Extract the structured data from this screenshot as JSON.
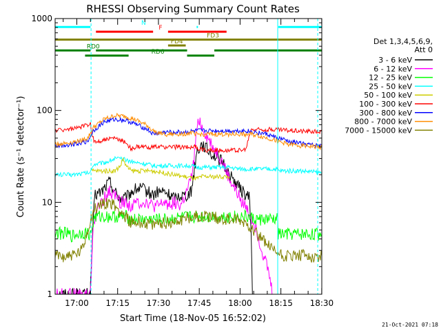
{
  "chart_data": {
    "type": "line",
    "title": "RHESSI Observing Summary Count Rates",
    "xlabel": "Start Time (18-Nov-05 16:52:02)",
    "ylabel": "Count Rate (s⁻¹ detector⁻¹)",
    "yscale": "log",
    "ylim": [
      1,
      1000
    ],
    "xlim_minutes": [
      0,
      98
    ],
    "x_tick_labels": [
      "17:00",
      "17:15",
      "17:30",
      "17:45",
      "18:00",
      "18:15",
      "18:30"
    ],
    "x_tick_minutes": [
      7.97,
      22.97,
      37.97,
      52.97,
      67.97,
      82.97,
      97.97
    ],
    "y_tick_labels": [
      "1",
      "10",
      "100",
      "1000"
    ],
    "y_tick_values": [
      1,
      10,
      100,
      1000
    ],
    "legend": {
      "position": "right",
      "header": [
        "Det 1,3,4,5,6,9,",
        "Att 0"
      ],
      "entries": [
        {
          "label": "3 - 6 keV",
          "color": "#000000"
        },
        {
          "label": "6 - 12 keV",
          "color": "#ff00ff"
        },
        {
          "label": "12 - 25 keV",
          "color": "#00ff00"
        },
        {
          "label": "25 - 50 keV",
          "color": "#00ffff"
        },
        {
          "label": "50 - 100 keV",
          "color": "#cccc00"
        },
        {
          "label": "100 - 300 keV",
          "color": "#ff0000"
        },
        {
          "label": "300 - 800 keV",
          "color": "#0000ff"
        },
        {
          "label": "800 - 7000 keV",
          "color": "#ff8c00"
        },
        {
          "label": "7000 - 15000 keV",
          "color": "#808000"
        }
      ]
    },
    "flag_bars": [
      {
        "label": "N",
        "color": "#00ffff",
        "segments": [
          [
            0,
            13
          ],
          [
            52,
            52.5
          ],
          [
            82,
            98
          ]
        ],
        "level": 810
      },
      {
        "label": "F",
        "color": "#ff0000",
        "segments": [
          [
            15,
            36
          ],
          [
            41.5,
            63
          ]
        ],
        "level": 720
      },
      {
        "label": "FD3",
        "color": "#808000",
        "segments": [
          [
            0,
            98
          ]
        ],
        "level": 590
      },
      {
        "label": "FD4",
        "color": "#808000",
        "segments": [
          [
            41.5,
            48
          ]
        ],
        "level": 510
      },
      {
        "label": "RD0",
        "color": "#008000",
        "segments": [
          [
            0,
            13
          ],
          [
            15,
            48.5
          ],
          [
            58.5,
            98
          ]
        ],
        "level": 450
      },
      {
        "label": "RD6",
        "color": "#008000",
        "segments": [
          [
            11,
            27
          ],
          [
            48.5,
            58.5
          ]
        ],
        "level": 395
      }
    ],
    "vlines": [
      {
        "minute": 0,
        "style": "solid"
      },
      {
        "minute": 13.2,
        "style": "dashed"
      },
      {
        "minute": 81.8,
        "style": "solid"
      },
      {
        "minute": 96.5,
        "style": "dashed"
      }
    ],
    "series": [
      {
        "name": "3 - 6 keV",
        "color": "#000000",
        "points": [
          [
            0,
            1
          ],
          [
            13,
            1
          ],
          [
            13,
            1.3
          ],
          [
            14.5,
            12
          ],
          [
            17,
            13
          ],
          [
            20,
            17
          ],
          [
            22,
            13
          ],
          [
            24,
            11
          ],
          [
            26,
            11
          ],
          [
            28,
            13
          ],
          [
            30,
            14
          ],
          [
            32,
            14
          ],
          [
            34,
            13
          ],
          [
            36,
            12
          ],
          [
            38,
            13
          ],
          [
            40,
            13
          ],
          [
            42,
            12
          ],
          [
            44,
            11
          ],
          [
            46,
            12
          ],
          [
            48,
            12
          ],
          [
            50,
            13
          ],
          [
            52,
            35
          ],
          [
            54,
            44
          ],
          [
            56,
            37
          ],
          [
            58,
            33
          ],
          [
            60,
            30
          ],
          [
            62,
            26
          ],
          [
            64,
            20
          ],
          [
            66,
            17
          ],
          [
            68,
            14
          ],
          [
            70,
            12
          ],
          [
            71.5,
            11
          ],
          [
            72,
            5
          ],
          [
            72.5,
            1
          ]
        ]
      },
      {
        "name": "6 - 12 keV",
        "color": "#ff00ff",
        "points": [
          [
            0,
            1
          ],
          [
            13,
            1
          ],
          [
            14,
            6
          ],
          [
            16,
            9
          ],
          [
            18,
            11
          ],
          [
            20,
            13
          ],
          [
            22,
            12
          ],
          [
            24,
            10
          ],
          [
            26,
            10
          ],
          [
            28,
            9
          ],
          [
            30,
            10
          ],
          [
            32,
            10
          ],
          [
            34,
            10
          ],
          [
            36,
            9
          ],
          [
            38,
            9
          ],
          [
            40,
            10
          ],
          [
            42,
            9.5
          ],
          [
            44,
            10
          ],
          [
            46,
            9
          ],
          [
            48,
            12
          ],
          [
            50,
            18
          ],
          [
            51,
            28
          ],
          [
            52,
            60
          ],
          [
            53,
            80
          ],
          [
            54,
            65
          ],
          [
            56,
            50
          ],
          [
            58,
            40
          ],
          [
            60,
            33
          ],
          [
            62,
            25
          ],
          [
            64,
            18
          ],
          [
            66,
            14
          ],
          [
            68,
            11
          ],
          [
            70,
            9
          ],
          [
            72,
            7
          ],
          [
            74,
            5
          ],
          [
            76,
            3
          ],
          [
            78,
            2
          ],
          [
            80,
            1
          ]
        ]
      },
      {
        "name": "12 - 25 keV",
        "color": "#00ff00",
        "points": [
          [
            0,
            4.6
          ],
          [
            4,
            4.6
          ],
          [
            6,
            4.3
          ],
          [
            8,
            4.5
          ],
          [
            10,
            4.7
          ],
          [
            12,
            4.6
          ],
          [
            13,
            4.4
          ],
          [
            14.5,
            7
          ],
          [
            20,
            7
          ],
          [
            26,
            7
          ],
          [
            28,
            6.5
          ],
          [
            34,
            6.5
          ],
          [
            40,
            6.5
          ],
          [
            46,
            6.8
          ],
          [
            52,
            7
          ],
          [
            56,
            7
          ],
          [
            60,
            7
          ],
          [
            66,
            7
          ],
          [
            70,
            7
          ],
          [
            74,
            6.5
          ],
          [
            78,
            6.5
          ],
          [
            80,
            6.5
          ],
          [
            81.8,
            6.5
          ],
          [
            82,
            4.5
          ],
          [
            90,
            4.5
          ],
          [
            98,
            4.5
          ]
        ]
      },
      {
        "name": "25 - 50 keV",
        "color": "#00ffff",
        "points": [
          [
            0,
            20
          ],
          [
            6,
            20
          ],
          [
            12,
            21
          ],
          [
            13,
            21
          ],
          [
            14,
            26
          ],
          [
            18,
            27
          ],
          [
            22,
            30
          ],
          [
            26,
            29
          ],
          [
            30,
            27
          ],
          [
            34,
            26
          ],
          [
            36,
            25
          ],
          [
            38,
            25
          ],
          [
            44,
            25
          ],
          [
            50,
            25
          ],
          [
            52,
            24
          ],
          [
            56,
            24
          ],
          [
            60,
            24
          ],
          [
            64,
            24
          ],
          [
            68,
            23
          ],
          [
            72,
            23
          ],
          [
            76,
            23
          ],
          [
            81.8,
            23
          ],
          [
            82,
            22
          ],
          [
            90,
            22
          ],
          [
            98,
            21
          ]
        ]
      },
      {
        "name": "50 - 100 keV",
        "color": "#cccc00",
        "points": [
          [
            13.5,
            22
          ],
          [
            16,
            22
          ],
          [
            20,
            22
          ],
          [
            22,
            22
          ],
          [
            24,
            25
          ],
          [
            25,
            30
          ],
          [
            26,
            25
          ],
          [
            28,
            22
          ],
          [
            30,
            22
          ],
          [
            34,
            22
          ],
          [
            36,
            22
          ],
          [
            52,
            18
          ],
          [
            54,
            19
          ],
          [
            60,
            19
          ],
          [
            64,
            19
          ]
        ]
      },
      {
        "name": "100 - 300 keV",
        "color": "#ff0000",
        "points": [
          [
            0,
            61
          ],
          [
            4,
            62
          ],
          [
            8,
            64
          ],
          [
            11,
            68
          ],
          [
            13,
            73
          ],
          [
            13.5,
            55
          ],
          [
            14.5,
            45
          ],
          [
            18,
            48
          ],
          [
            22,
            50
          ],
          [
            26,
            45
          ],
          [
            28,
            38
          ],
          [
            30,
            40
          ],
          [
            36,
            40
          ],
          [
            40,
            40
          ],
          [
            46,
            40
          ],
          [
            50,
            40
          ],
          [
            52,
            40
          ],
          [
            52.5,
            38
          ],
          [
            56,
            37
          ],
          [
            60,
            37
          ],
          [
            64,
            37
          ],
          [
            70,
            37
          ],
          [
            72,
            62
          ],
          [
            80,
            62
          ],
          [
            86,
            61
          ],
          [
            90,
            60
          ],
          [
            98,
            59
          ]
        ]
      },
      {
        "name": "300 - 800 keV",
        "color": "#0000ff",
        "points": [
          [
            0,
            41
          ],
          [
            4,
            42
          ],
          [
            8,
            44
          ],
          [
            12,
            46
          ],
          [
            14,
            60
          ],
          [
            18,
            75
          ],
          [
            22,
            80
          ],
          [
            26,
            78
          ],
          [
            30,
            70
          ],
          [
            34,
            62
          ],
          [
            36,
            55
          ],
          [
            40,
            58
          ],
          [
            44,
            58
          ],
          [
            48,
            58
          ],
          [
            52,
            60
          ],
          [
            56,
            60
          ],
          [
            60,
            60
          ],
          [
            64,
            60
          ],
          [
            70,
            60
          ],
          [
            74,
            58
          ],
          [
            78,
            55
          ],
          [
            80,
            52
          ],
          [
            82,
            50
          ],
          [
            86,
            46
          ],
          [
            90,
            44
          ],
          [
            94,
            42
          ],
          [
            98,
            41
          ]
        ]
      },
      {
        "name": "800 - 7000 keV",
        "color": "#ff8c00",
        "points": [
          [
            0,
            43
          ],
          [
            4,
            44
          ],
          [
            8,
            46
          ],
          [
            12,
            50
          ],
          [
            14,
            65
          ],
          [
            18,
            80
          ],
          [
            22,
            88
          ],
          [
            26,
            86
          ],
          [
            30,
            78
          ],
          [
            34,
            68
          ],
          [
            36,
            60
          ],
          [
            40,
            55
          ],
          [
            44,
            55
          ],
          [
            48,
            56
          ],
          [
            50,
            57
          ],
          [
            52,
            55
          ],
          [
            56,
            55
          ],
          [
            60,
            55
          ],
          [
            64,
            55
          ],
          [
            68,
            55
          ],
          [
            72,
            55
          ],
          [
            76,
            52
          ],
          [
            80,
            48
          ],
          [
            84,
            44
          ],
          [
            88,
            42
          ],
          [
            92,
            41
          ],
          [
            98,
            40
          ]
        ]
      },
      {
        "name": "7000 - 15000 keV",
        "color": "#808000",
        "points": [
          [
            0,
            2.6
          ],
          [
            4,
            2.6
          ],
          [
            8,
            2.7
          ],
          [
            10,
            3
          ],
          [
            12,
            5
          ],
          [
            14,
            8
          ],
          [
            16,
            9
          ],
          [
            18,
            10
          ],
          [
            20,
            10
          ],
          [
            22,
            9
          ],
          [
            24,
            8
          ],
          [
            26,
            7
          ],
          [
            28,
            6
          ],
          [
            30,
            6
          ],
          [
            34,
            6
          ],
          [
            36,
            5.5
          ],
          [
            38,
            6
          ],
          [
            42,
            6
          ],
          [
            46,
            6.5
          ],
          [
            50,
            7
          ],
          [
            54,
            7
          ],
          [
            58,
            7
          ],
          [
            62,
            6.5
          ],
          [
            66,
            6.5
          ],
          [
            70,
            6
          ],
          [
            72,
            5.5
          ],
          [
            76,
            4
          ],
          [
            80,
            3
          ],
          [
            84,
            2.6
          ],
          [
            88,
            2.6
          ],
          [
            92,
            2.6
          ],
          [
            98,
            2.6
          ]
        ]
      }
    ]
  },
  "footer": {
    "date_stamp": "21-Oct-2021 07:18"
  }
}
